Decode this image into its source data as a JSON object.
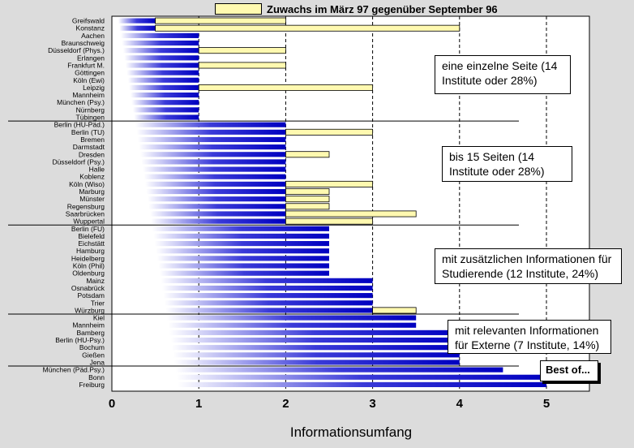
{
  "chart_data": {
    "type": "bar",
    "orientation": "horizontal",
    "xlabel": "Informationsumfang",
    "xlim": [
      0,
      5.5
    ],
    "xticks": [
      "0",
      "1",
      "2",
      "3",
      "4",
      "5"
    ],
    "legend": {
      "label": "Zuwachs im März 97 gegenüber September 96",
      "placement": "top"
    },
    "categories": [
      "Greifswald",
      "Konstanz",
      "Aachen",
      "Braunschweig",
      "Düsseldorf (Phys.)",
      "Erlangen",
      "Frankfurt M.",
      "Göttingen",
      "Köln (Ewi)",
      "Leipzig",
      "Mannheim",
      "München (Psy.)",
      "Nürnberg",
      "Tübingen",
      "Berlin (HU-Päd.)",
      "Berlin (TU)",
      "Bremen",
      "Darmstadt",
      "Dresden",
      "Düsseldorf (Psy.)",
      "Halle",
      "Koblenz",
      "Köln (Wiso)",
      "Marburg",
      "Münster",
      "Regensburg",
      "Saarbrücken",
      "Wuppertal",
      "Berlin (FU)",
      "Bielefeld",
      "Eichstätt",
      "Hamburg",
      "Heidelberg",
      "Köln (Phil)",
      "Oldenburg",
      "Mainz",
      "Osnabrück",
      "Potsdam",
      "Trier",
      "Würzburg",
      "Kiel",
      "Mannheim",
      "Bamberg",
      "Berlin (HU-Psy.)",
      "Bochum",
      "Gießen",
      "Jena",
      "München (Päd.Psy.)",
      "Bonn",
      "Freiburg"
    ],
    "series": [
      {
        "role": "value",
        "color": "#1c1cc8",
        "values": [
          0.5,
          0.5,
          1,
          1,
          1,
          1,
          1,
          1,
          1,
          1,
          1,
          1,
          1,
          1,
          2,
          2,
          2,
          2,
          2,
          2,
          2,
          2,
          2,
          2,
          2,
          2,
          2,
          2,
          2.5,
          2.5,
          2.5,
          2.5,
          2.5,
          2.5,
          2.5,
          3,
          3,
          3,
          3,
          3,
          3.5,
          3.5,
          4,
          4,
          4,
          4,
          4,
          4.5,
          5,
          5
        ]
      },
      {
        "name": "Zuwachs im März 97 gegenüber September 96",
        "role": "growth",
        "color": "#fff9b0",
        "values": [
          2,
          4,
          0,
          0,
          2,
          0,
          2,
          0,
          0,
          3,
          0,
          0,
          0,
          0,
          0,
          3,
          0,
          0,
          2.5,
          0,
          0,
          0,
          3,
          2.5,
          2.5,
          2.5,
          3.5,
          3,
          0,
          0,
          0,
          0,
          0,
          0,
          0,
          0,
          0,
          0,
          0,
          3.5,
          0,
          0,
          0,
          0,
          0,
          0,
          0,
          0,
          0,
          0
        ]
      }
    ],
    "group_separators_after": [
      13,
      27,
      39,
      46
    ],
    "annotations": [
      "eine einzelne Seite (14 Institute oder 28%)",
      "bis 15 Seiten (14 Institute oder 28%)",
      "mit zusätzlichen Informationen für Studierende (12 Institute, 24%)",
      "mit relevanten Informationen für Externe (7 Institute, 14%)",
      "Best of..."
    ]
  }
}
